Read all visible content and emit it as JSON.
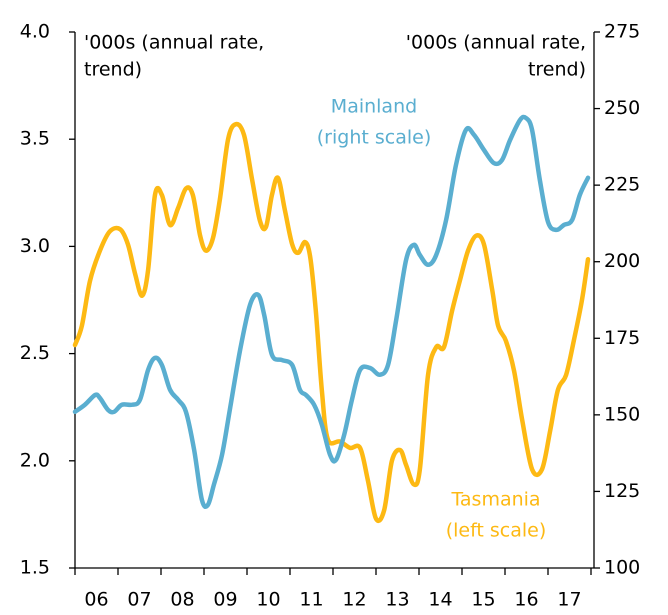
{
  "chart_data": {
    "type": "line",
    "left_axis_label": [
      "'000s (annual rate,",
      "trend)"
    ],
    "right_axis_label": [
      "'000s (annual rate,",
      "trend)"
    ],
    "xlim": [
      2006,
      2018
    ],
    "xticks": [
      {
        "value": 2006,
        "label": "06"
      },
      {
        "value": 2007,
        "label": "07"
      },
      {
        "value": 2008,
        "label": "08"
      },
      {
        "value": 2009,
        "label": "09"
      },
      {
        "value": 2010,
        "label": "10"
      },
      {
        "value": 2011,
        "label": "11"
      },
      {
        "value": 2012,
        "label": "12"
      },
      {
        "value": 2013,
        "label": "13"
      },
      {
        "value": 2014,
        "label": "14"
      },
      {
        "value": 2015,
        "label": "15"
      },
      {
        "value": 2016,
        "label": "16"
      },
      {
        "value": 2017,
        "label": "17"
      }
    ],
    "ylim": [
      1.5,
      4.0
    ],
    "yticks": [
      {
        "value": 1.5,
        "label": "1.5"
      },
      {
        "value": 2.0,
        "label": "2.0"
      },
      2.5,
      {
        "value": 3.0,
        "label": "3.0"
      },
      3.5,
      {
        "value": 4.0,
        "label": "4.0"
      }
    ],
    "y2lim": [
      100,
      275
    ],
    "y2ticks": [
      100,
      125,
      150,
      175,
      200,
      225,
      250,
      275
    ],
    "series": [
      {
        "name": "Tasmania",
        "note": "(left scale)",
        "color": "#fdb913",
        "axis": "y",
        "x": [
          2006.0,
          2006.16,
          2006.35,
          2006.58,
          2006.81,
          2007.05,
          2007.23,
          2007.4,
          2007.56,
          2007.7,
          2007.86,
          2008.02,
          2008.21,
          2008.4,
          2008.58,
          2008.74,
          2008.91,
          2009.05,
          2009.21,
          2009.37,
          2009.56,
          2009.74,
          2009.93,
          2010.12,
          2010.3,
          2010.44,
          2010.58,
          2010.72,
          2010.88,
          2011.05,
          2011.19,
          2011.35,
          2011.47,
          2011.6,
          2011.74,
          2011.88,
          2012.16,
          2012.4,
          2012.63,
          2012.81,
          2013.0,
          2013.19,
          2013.37,
          2013.56,
          2013.7,
          2013.88,
          2014.02,
          2014.21,
          2014.4,
          2014.58,
          2014.77,
          2014.95,
          2015.14,
          2015.33,
          2015.51,
          2015.7,
          2015.84,
          2016.02,
          2016.21,
          2016.4,
          2016.63,
          2016.86,
          2017.05,
          2017.23,
          2017.42,
          2017.6,
          2017.79,
          2017.93
        ],
        "values": [
          2.54,
          2.63,
          2.84,
          2.98,
          3.07,
          3.08,
          3.01,
          2.87,
          2.77,
          2.89,
          3.24,
          3.24,
          3.1,
          3.18,
          3.27,
          3.24,
          3.05,
          2.98,
          3.04,
          3.22,
          3.5,
          3.57,
          3.52,
          3.31,
          3.12,
          3.09,
          3.24,
          3.32,
          3.17,
          3.01,
          2.97,
          3.02,
          2.95,
          2.7,
          2.33,
          2.1,
          2.09,
          2.06,
          2.06,
          1.91,
          1.73,
          1.77,
          2.0,
          2.05,
          1.98,
          1.89,
          1.96,
          2.4,
          2.53,
          2.53,
          2.7,
          2.84,
          2.98,
          3.05,
          3.01,
          2.8,
          2.63,
          2.56,
          2.42,
          2.19,
          1.96,
          1.96,
          2.14,
          2.33,
          2.4,
          2.56,
          2.75,
          2.94
        ]
      },
      {
        "name": "Mainland",
        "note": "(right scale)",
        "color": "#5aaed0",
        "axis": "y2",
        "x": [
          2006.0,
          2006.23,
          2006.47,
          2006.58,
          2006.77,
          2006.91,
          2007.09,
          2007.33,
          2007.51,
          2007.7,
          2007.86,
          2008.02,
          2008.21,
          2008.4,
          2008.58,
          2008.77,
          2008.95,
          2009.09,
          2009.23,
          2009.42,
          2009.6,
          2009.84,
          2010.07,
          2010.26,
          2010.4,
          2010.58,
          2010.81,
          2011.05,
          2011.23,
          2011.37,
          2011.56,
          2011.74,
          2011.93,
          2012.07,
          2012.26,
          2012.44,
          2012.63,
          2012.86,
          2013.09,
          2013.28,
          2013.47,
          2013.7,
          2013.88,
          2014.02,
          2014.21,
          2014.4,
          2014.63,
          2014.86,
          2015.09,
          2015.28,
          2015.51,
          2015.74,
          2015.93,
          2016.12,
          2016.35,
          2016.49,
          2016.63,
          2016.81,
          2017.0,
          2017.19,
          2017.37,
          2017.56,
          2017.74,
          2017.93
        ],
        "values": [
          151.0,
          153.3,
          156.5,
          155.5,
          151.6,
          151.0,
          153.3,
          153.3,
          154.9,
          164.7,
          168.6,
          166.3,
          158.2,
          154.9,
          151.0,
          138.6,
          122.3,
          120.6,
          127.2,
          137.0,
          151.6,
          171.2,
          185.9,
          189.2,
          182.6,
          169.6,
          167.9,
          166.3,
          158.2,
          156.5,
          153.3,
          146.8,
          137.0,
          135.3,
          143.5,
          154.9,
          164.7,
          165.3,
          163.1,
          166.3,
          181.0,
          200.6,
          205.5,
          202.2,
          199.0,
          202.2,
          213.6,
          231.6,
          243.0,
          241.4,
          236.5,
          232.2,
          233.2,
          239.8,
          246.3,
          246.9,
          243.0,
          226.7,
          213.0,
          210.4,
          212.0,
          213.6,
          221.8,
          227.4
        ]
      }
    ]
  }
}
